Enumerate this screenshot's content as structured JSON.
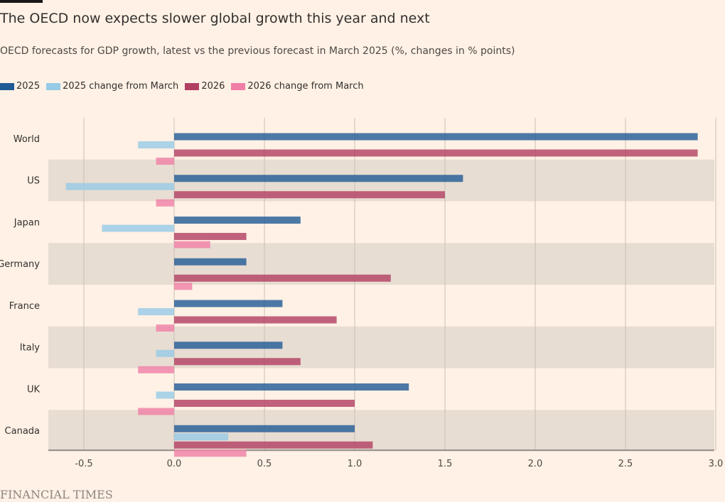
{
  "title": "The OECD now expects slower global growth this year and next",
  "subtitle": "OECD forecasts for GDP growth, latest vs the previous forecast in March 2025 (%, changes in % points)",
  "source": "FINANCIAL TIMES",
  "colors": {
    "background": "#fff1e5",
    "band": "#e8ddd2",
    "gridline": "#c9bfb5"
  },
  "chart_data": {
    "type": "bar",
    "orientation": "horizontal",
    "categories": [
      "World",
      "US",
      "Japan",
      "Germany",
      "France",
      "Italy",
      "UK",
      "Canada"
    ],
    "series": [
      {
        "name": "2025",
        "color": "#1f5a96",
        "values": [
          2.9,
          1.6,
          0.7,
          0.4,
          0.6,
          0.6,
          1.3,
          1.0
        ]
      },
      {
        "name": "2025 change from March",
        "color": "#96cbe7",
        "values": [
          -0.2,
          -0.6,
          -0.4,
          0.0,
          -0.2,
          -0.1,
          -0.1,
          0.3
        ]
      },
      {
        "name": "2026",
        "color": "#b13f62",
        "values": [
          2.9,
          1.5,
          0.4,
          1.2,
          0.9,
          0.7,
          1.0,
          1.1
        ]
      },
      {
        "name": "2026 change from March",
        "color": "#f07fa8",
        "values": [
          -0.1,
          -0.1,
          0.2,
          0.1,
          -0.1,
          -0.2,
          -0.2,
          0.4
        ]
      }
    ],
    "xlim": [
      -0.7,
      3.0
    ],
    "xticks": [
      -0.5,
      0.0,
      0.5,
      1.0,
      1.5,
      2.0,
      2.5,
      3.0
    ],
    "xtick_labels": [
      "-0.5",
      "0.0",
      "0.5",
      "1.0",
      "1.5",
      "2.0",
      "2.5",
      "3.0"
    ],
    "xlabel": "",
    "ylabel": "",
    "grid": true,
    "legend_position": "top-left",
    "alternating_row_bands": true
  }
}
